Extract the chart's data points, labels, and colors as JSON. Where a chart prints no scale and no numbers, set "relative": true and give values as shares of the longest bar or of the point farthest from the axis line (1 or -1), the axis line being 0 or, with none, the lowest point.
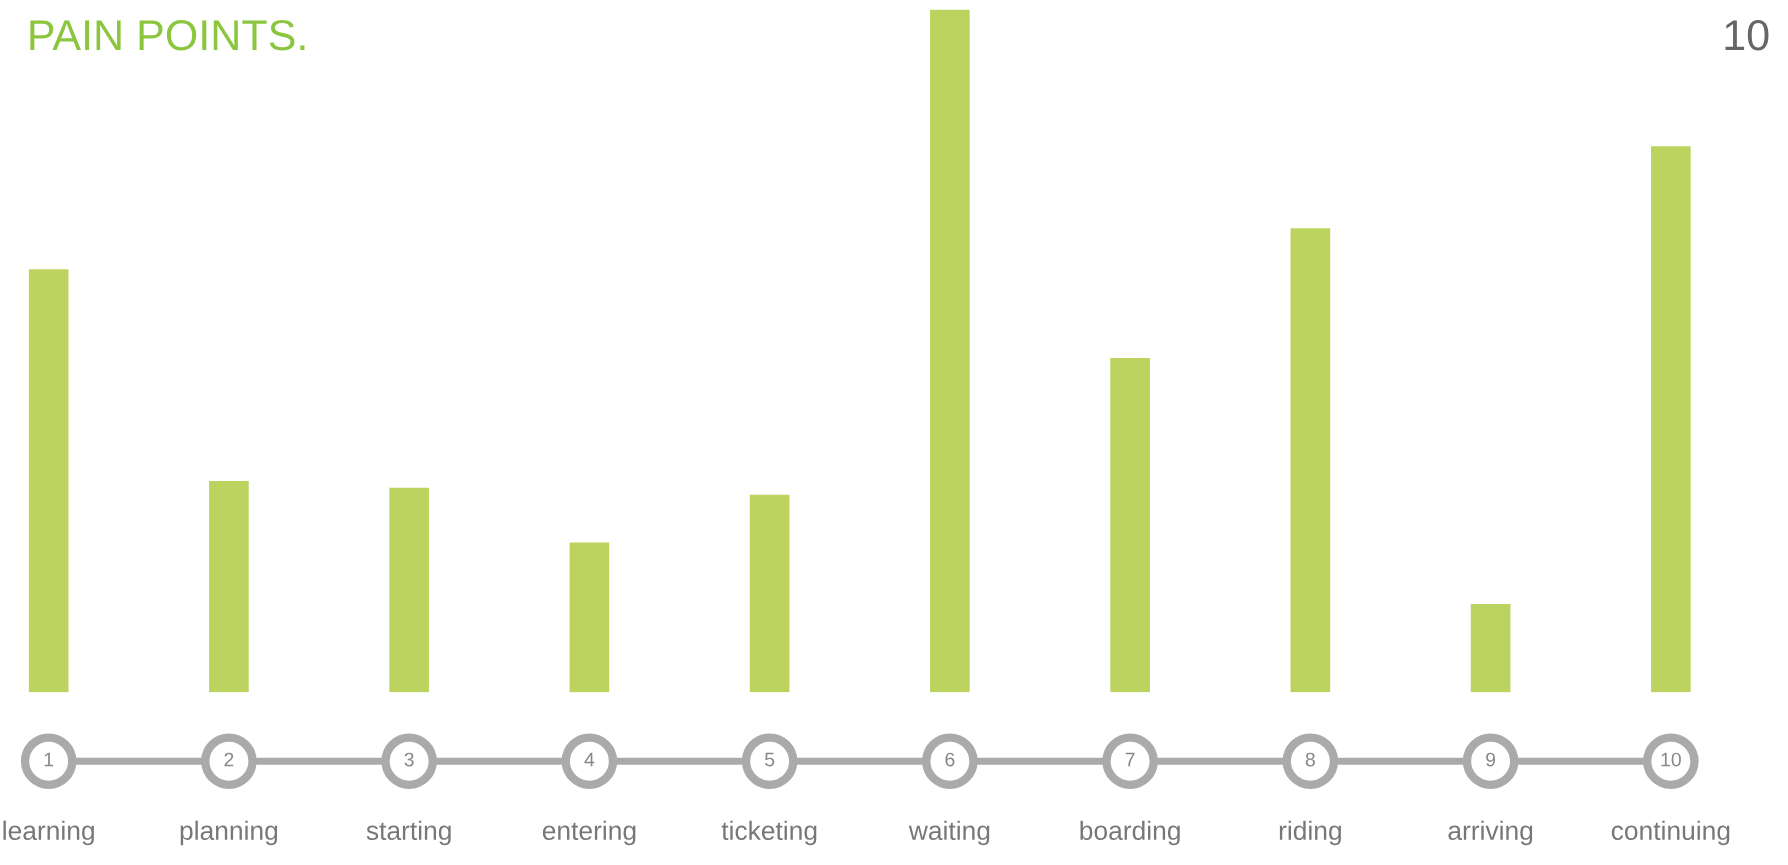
{
  "chart_data": {
    "type": "bar",
    "title": "PAIN POINTS.",
    "relative": true,
    "color": "#bcd35f",
    "categories": [
      "learning",
      "planning",
      "starting",
      "entering",
      "ticketing",
      "waiting",
      "boarding",
      "riding",
      "arriving",
      "continuing"
    ],
    "values": [
      0.62,
      0.31,
      0.3,
      0.22,
      0.29,
      1,
      0.49,
      0.68,
      0.13,
      0.8
    ],
    "annotations": [
      "1",
      "2",
      "3",
      "4",
      "5",
      "6",
      "7",
      "8",
      "9",
      "10",
      "10"
    ],
    "grid": false,
    "legend": false
  }
}
